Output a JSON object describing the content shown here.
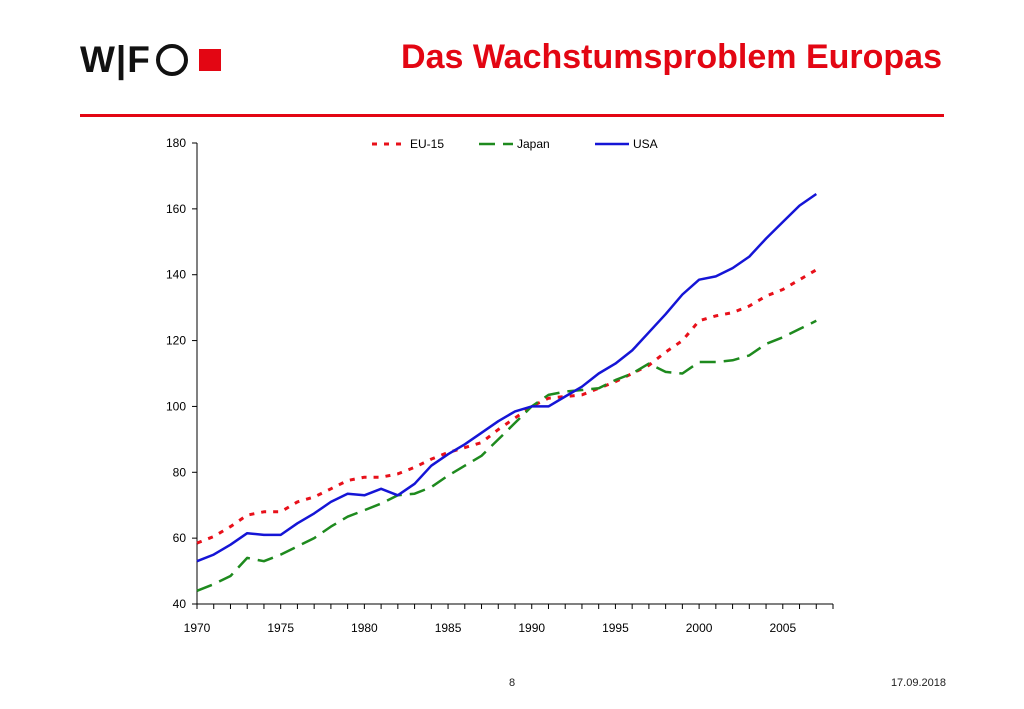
{
  "slide": {
    "logo_text": "W|F",
    "title": "Das Wachstumsproblem Europas",
    "page_number": "8",
    "date": "17.09.2018"
  },
  "colors": {
    "brand_red": "#e30613",
    "eu15": "#e8101a",
    "japan": "#1e8a1e",
    "usa": "#1515d6"
  },
  "chart_data": {
    "type": "line",
    "title": "",
    "xlabel": "",
    "ylabel": "",
    "xlim": [
      1970,
      2008
    ],
    "ylim": [
      40,
      180
    ],
    "yticks": [
      40,
      60,
      80,
      100,
      120,
      140,
      160,
      180
    ],
    "xtick_labels": [
      1970,
      1975,
      1980,
      1985,
      1990,
      1995,
      2000,
      2005
    ],
    "grid": false,
    "legend_position": "top",
    "x": [
      1970,
      1971,
      1972,
      1973,
      1974,
      1975,
      1976,
      1977,
      1978,
      1979,
      1980,
      1981,
      1982,
      1983,
      1984,
      1985,
      1986,
      1987,
      1988,
      1989,
      1990,
      1991,
      1992,
      1993,
      1994,
      1995,
      1996,
      1997,
      1998,
      1999,
      2000,
      2001,
      2002,
      2003,
      2004,
      2005,
      2006,
      2007
    ],
    "series": [
      {
        "name": "EU-15",
        "style": "dotted",
        "values": [
          58.5,
          60.5,
          63.5,
          67,
          68,
          68,
          71,
          72.5,
          75,
          77.5,
          78.5,
          78.5,
          79.5,
          81.5,
          84,
          86,
          87.5,
          89,
          93,
          96.5,
          100,
          102.5,
          103,
          103.5,
          105.5,
          107.5,
          110,
          112.5,
          116.5,
          120,
          126,
          127.5,
          128.5,
          130.5,
          133.5,
          135.5,
          138.5,
          141.5
        ]
      },
      {
        "name": "Japan",
        "style": "dashed",
        "values": [
          44,
          46,
          48.5,
          54,
          53,
          55,
          57.5,
          60,
          63.5,
          66.5,
          68.5,
          70.5,
          73,
          73.5,
          75.5,
          79,
          82,
          85,
          90,
          95,
          100,
          103.5,
          104.5,
          105,
          105.5,
          108,
          110,
          113,
          110.5,
          110,
          113.5,
          113.5,
          114,
          115.5,
          119,
          121,
          123.5,
          126
        ]
      },
      {
        "name": "USA",
        "style": "solid",
        "values": [
          53,
          55,
          58,
          61.5,
          61,
          61,
          64.5,
          67.5,
          71,
          73.5,
          73,
          75,
          73,
          76.5,
          82,
          85.5,
          88.5,
          92,
          95.5,
          98.5,
          100,
          100,
          103,
          106,
          110,
          113,
          117,
          122.5,
          128,
          134,
          138.5,
          139.5,
          142,
          145.5,
          151,
          156,
          161,
          164.5
        ]
      }
    ]
  }
}
